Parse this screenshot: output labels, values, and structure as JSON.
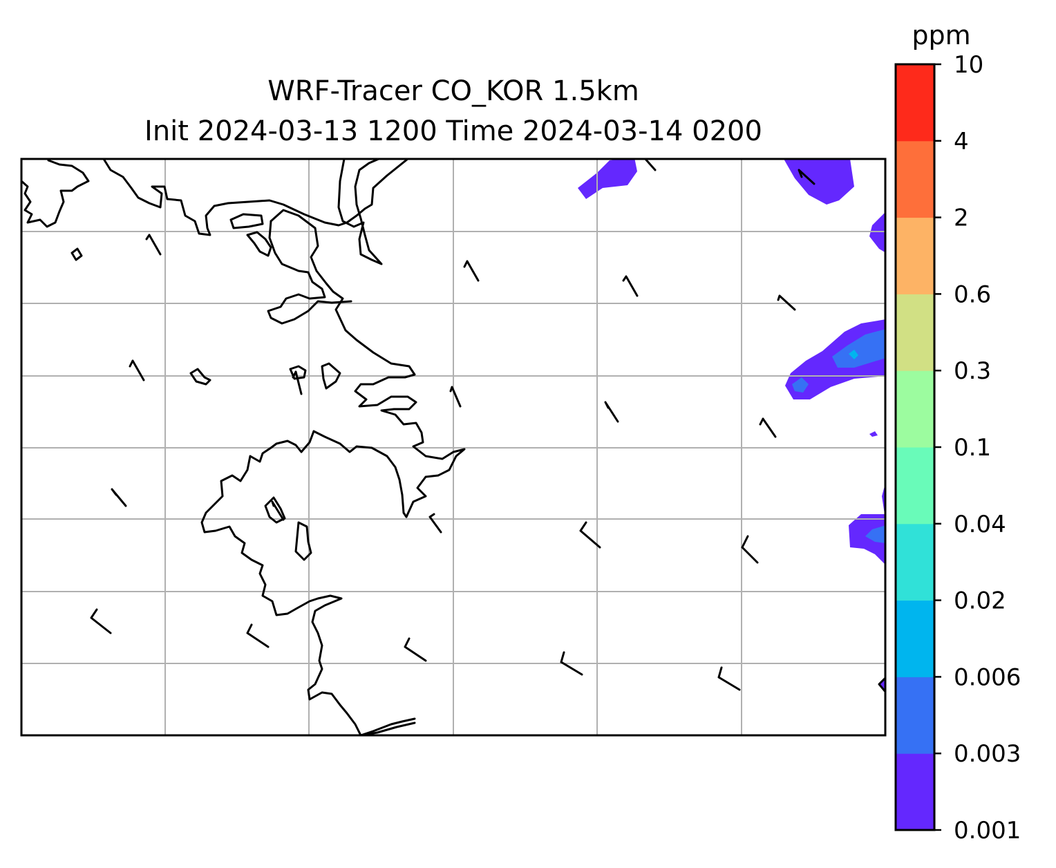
{
  "title": {
    "line1": "WRF-Tracer CO_KOR 1.5km",
    "line2": "Init 2024-03-13 1200 Time 2024-03-14 0200"
  },
  "colorbar": {
    "unit": "ppm",
    "levels": [
      "0.001",
      "0.003",
      "0.006",
      "0.02",
      "0.04",
      "0.1",
      "0.3",
      "0.6",
      "2",
      "4",
      "10"
    ],
    "colors": [
      "#6428fe",
      "#3671f4",
      "#00b5ee",
      "#30e1d8",
      "#69fbb9",
      "#9cfc9f",
      "#d1e084",
      "#fdb365",
      "#fe6f3a",
      "#fe2a1b"
    ]
  },
  "map": {
    "gridlines": true,
    "wind_barbs": true,
    "coastline_color": "#000000",
    "grid_color": "#b0b0b0"
  }
}
